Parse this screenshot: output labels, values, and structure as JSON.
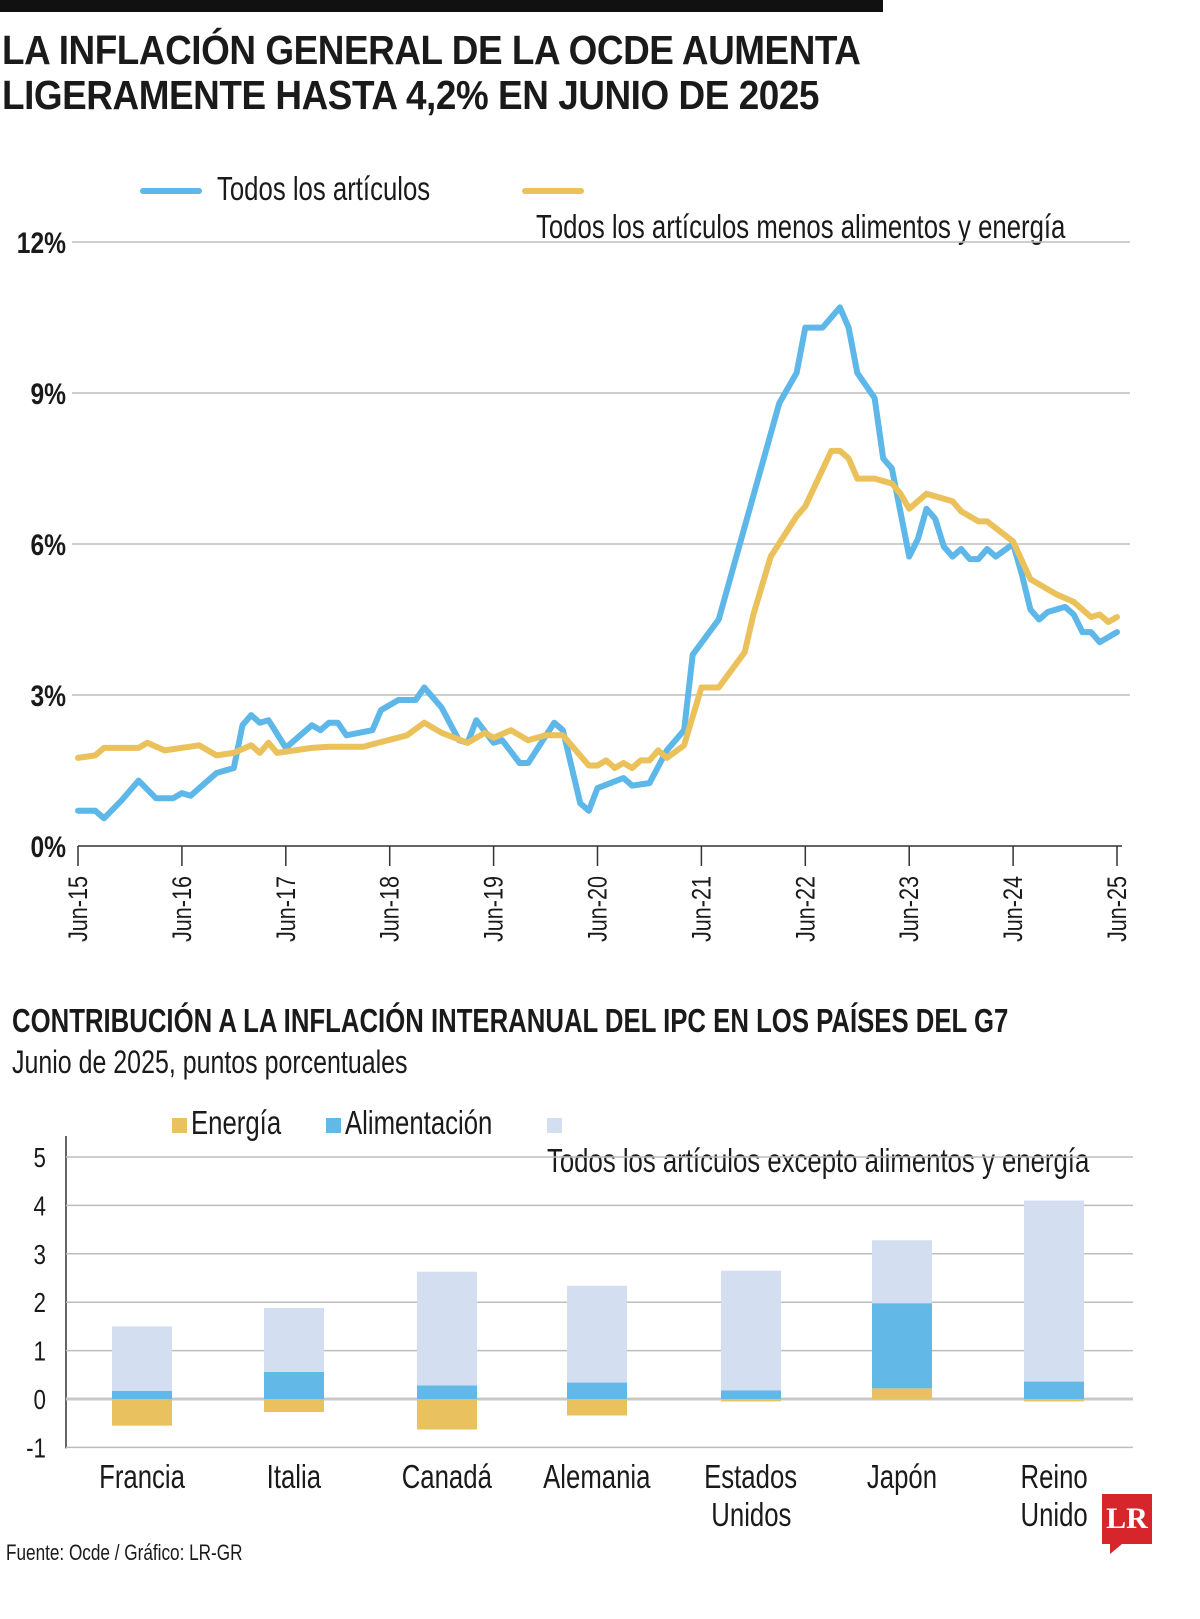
{
  "title_line1": "LA INFLACIÓN GENERAL DE LA OCDE AUMENTA",
  "title_line2": "LIGERAMENTE HASTA 4,2% EN JUNIO DE 2025",
  "source": "Fuente: Ocde / Gráfico: LR-GR",
  "logo_text": "LR",
  "colors": {
    "all_items": "#5db7e8",
    "core": "#eac15a",
    "energy": "#e9c15e",
    "food": "#62b8e6",
    "core_bar": "#d3def1",
    "grid": "#bdbdbd"
  },
  "chart_data": [
    {
      "type": "line",
      "legend": [
        "Todos los artículos",
        "Todos los artículos menos alimentos y energía"
      ],
      "legend_placement": "top",
      "y_ticks": [
        "0%",
        "3%",
        "6%",
        "9%",
        "12%"
      ],
      "ylim": [
        0,
        12
      ],
      "x_ticks": [
        "Jun-15",
        "Jun-16",
        "Jun-17",
        "Jun-18",
        "Jun-19",
        "Jun-20",
        "Jun-21",
        "Jun-22",
        "Jun-23",
        "Jun-24",
        "Jun-25"
      ],
      "xlim": [
        "2015-06",
        "2025-06"
      ],
      "grid": true,
      "series": [
        {
          "name": "Todos los artículos",
          "color": "#5db7e8",
          "points": [
            [
              "2015-06",
              0.7
            ],
            [
              "2015-08",
              0.7
            ],
            [
              "2015-09",
              0.55
            ],
            [
              "2015-11",
              0.9
            ],
            [
              "2016-01",
              1.3
            ],
            [
              "2016-03",
              0.95
            ],
            [
              "2016-05",
              0.95
            ],
            [
              "2016-06",
              1.05
            ],
            [
              "2016-07",
              1.0
            ],
            [
              "2016-10",
              1.45
            ],
            [
              "2016-12",
              1.55
            ],
            [
              "2017-01",
              2.4
            ],
            [
              "2017-02",
              2.6
            ],
            [
              "2017-03",
              2.45
            ],
            [
              "2017-04",
              2.5
            ],
            [
              "2017-06",
              1.95
            ],
            [
              "2017-09",
              2.4
            ],
            [
              "2017-10",
              2.3
            ],
            [
              "2017-11",
              2.45
            ],
            [
              "2017-12",
              2.45
            ],
            [
              "2018-01",
              2.2
            ],
            [
              "2018-04",
              2.3
            ],
            [
              "2018-05",
              2.7
            ],
            [
              "2018-07",
              2.9
            ],
            [
              "2018-09",
              2.9
            ],
            [
              "2018-10",
              3.15
            ],
            [
              "2018-12",
              2.75
            ],
            [
              "2019-02",
              2.1
            ],
            [
              "2019-03",
              2.05
            ],
            [
              "2019-04",
              2.5
            ],
            [
              "2019-06",
              2.05
            ],
            [
              "2019-07",
              2.1
            ],
            [
              "2019-09",
              1.65
            ],
            [
              "2019-10",
              1.65
            ],
            [
              "2020-01",
              2.45
            ],
            [
              "2020-02",
              2.3
            ],
            [
              "2020-04",
              0.85
            ],
            [
              "2020-05",
              0.7
            ],
            [
              "2020-06",
              1.15
            ],
            [
              "2020-09",
              1.35
            ],
            [
              "2020-10",
              1.2
            ],
            [
              "2020-12",
              1.25
            ],
            [
              "2021-02",
              1.9
            ],
            [
              "2021-04",
              2.3
            ],
            [
              "2021-05",
              3.8
            ],
            [
              "2021-08",
              4.5
            ],
            [
              "2022-03",
              8.8
            ],
            [
              "2022-05",
              9.4
            ],
            [
              "2022-06",
              10.3
            ],
            [
              "2022-08",
              10.3
            ],
            [
              "2022-10",
              10.7
            ],
            [
              "2022-11",
              10.3
            ],
            [
              "2022-12",
              9.4
            ],
            [
              "2023-02",
              8.9
            ],
            [
              "2023-03",
              7.7
            ],
            [
              "2023-04",
              7.5
            ],
            [
              "2023-06",
              5.75
            ],
            [
              "2023-07",
              6.1
            ],
            [
              "2023-08",
              6.7
            ],
            [
              "2023-09",
              6.5
            ],
            [
              "2023-10",
              5.95
            ],
            [
              "2023-11",
              5.75
            ],
            [
              "2023-12",
              5.9
            ],
            [
              "2024-01",
              5.7
            ],
            [
              "2024-02",
              5.7
            ],
            [
              "2024-03",
              5.9
            ],
            [
              "2024-04",
              5.75
            ],
            [
              "2024-06",
              6.0
            ],
            [
              "2024-07",
              5.4
            ],
            [
              "2024-08",
              4.7
            ],
            [
              "2024-09",
              4.5
            ],
            [
              "2024-10",
              4.65
            ],
            [
              "2024-12",
              4.75
            ],
            [
              "2025-01",
              4.6
            ],
            [
              "2025-02",
              4.25
            ],
            [
              "2025-03",
              4.25
            ],
            [
              "2025-04",
              4.05
            ],
            [
              "2025-06",
              4.25
            ]
          ]
        },
        {
          "name": "Todos los artículos menos alimentos y energía",
          "color": "#eac15a",
          "points": [
            [
              "2015-06",
              1.75
            ],
            [
              "2015-08",
              1.8
            ],
            [
              "2015-09",
              1.95
            ],
            [
              "2016-01",
              1.95
            ],
            [
              "2016-02",
              2.05
            ],
            [
              "2016-04",
              1.9
            ],
            [
              "2016-08",
              2.0
            ],
            [
              "2016-10",
              1.8
            ],
            [
              "2016-12",
              1.85
            ],
            [
              "2017-02",
              2.0
            ],
            [
              "2017-03",
              1.85
            ],
            [
              "2017-04",
              2.05
            ],
            [
              "2017-05",
              1.85
            ],
            [
              "2017-09",
              1.95
            ],
            [
              "2017-11",
              1.97
            ],
            [
              "2018-03",
              1.97
            ],
            [
              "2018-04",
              2.02
            ],
            [
              "2018-08",
              2.2
            ],
            [
              "2018-10",
              2.45
            ],
            [
              "2018-12",
              2.25
            ],
            [
              "2019-03",
              2.05
            ],
            [
              "2019-05",
              2.25
            ],
            [
              "2019-06",
              2.15
            ],
            [
              "2019-08",
              2.3
            ],
            [
              "2019-10",
              2.1
            ],
            [
              "2019-12",
              2.2
            ],
            [
              "2020-02",
              2.2
            ],
            [
              "2020-05",
              1.6
            ],
            [
              "2020-06",
              1.6
            ],
            [
              "2020-07",
              1.7
            ],
            [
              "2020-08",
              1.55
            ],
            [
              "2020-09",
              1.65
            ],
            [
              "2020-10",
              1.55
            ],
            [
              "2020-11",
              1.7
            ],
            [
              "2020-12",
              1.7
            ],
            [
              "2021-01",
              1.9
            ],
            [
              "2021-02",
              1.75
            ],
            [
              "2021-04",
              2.0
            ],
            [
              "2021-06",
              3.15
            ],
            [
              "2021-08",
              3.15
            ],
            [
              "2021-11",
              3.85
            ],
            [
              "2021-12",
              4.6
            ],
            [
              "2022-02",
              5.75
            ],
            [
              "2022-05",
              6.55
            ],
            [
              "2022-06",
              6.75
            ],
            [
              "2022-09",
              7.85
            ],
            [
              "2022-10",
              7.85
            ],
            [
              "2022-11",
              7.7
            ],
            [
              "2022-12",
              7.3
            ],
            [
              "2023-02",
              7.3
            ],
            [
              "2023-04",
              7.2
            ],
            [
              "2023-05",
              7.0
            ],
            [
              "2023-06",
              6.7
            ],
            [
              "2023-08",
              7.0
            ],
            [
              "2023-11",
              6.85
            ],
            [
              "2023-12",
              6.65
            ],
            [
              "2024-02",
              6.45
            ],
            [
              "2024-03",
              6.45
            ],
            [
              "2024-06",
              6.05
            ],
            [
              "2024-08",
              5.3
            ],
            [
              "2024-11",
              5.0
            ],
            [
              "2025-01",
              4.85
            ],
            [
              "2025-03",
              4.55
            ],
            [
              "2025-04",
              4.6
            ],
            [
              "2025-05",
              4.45
            ],
            [
              "2025-06",
              4.55
            ]
          ]
        }
      ]
    },
    {
      "type": "bar",
      "stacked": true,
      "title": "CONTRIBUCIÓN A LA INFLACIÓN INTERANUAL DEL IPC EN LOS PAÍSES DEL G7",
      "subtitle": "Junio de 2025, puntos porcentuales",
      "legend_placement": "top",
      "categories": [
        [
          "Francia"
        ],
        [
          "Italia"
        ],
        [
          "Canadá"
        ],
        [
          "Alemania"
        ],
        [
          "Estados",
          "Unidos"
        ],
        [
          "Japón"
        ],
        [
          "Reino",
          "Unido"
        ]
      ],
      "y_ticks": [
        "-1",
        "0",
        "1",
        "2",
        "3",
        "4",
        "5"
      ],
      "ylim": [
        -1,
        5
      ],
      "grid": true,
      "series": [
        {
          "name": "Energía",
          "color": "#e9c15e",
          "values": [
            -0.55,
            -0.27,
            -0.63,
            -0.34,
            -0.05,
            0.22,
            -0.05
          ]
        },
        {
          "name": "Alimentación",
          "color": "#62b8e6",
          "values": [
            0.17,
            0.56,
            0.28,
            0.34,
            0.18,
            1.76,
            0.36
          ]
        },
        {
          "name": "Todos los artículos excepto alimentos y energía",
          "color": "#d3def1",
          "values": [
            1.33,
            1.32,
            2.35,
            2.0,
            2.47,
            1.3,
            3.74
          ]
        }
      ]
    }
  ]
}
